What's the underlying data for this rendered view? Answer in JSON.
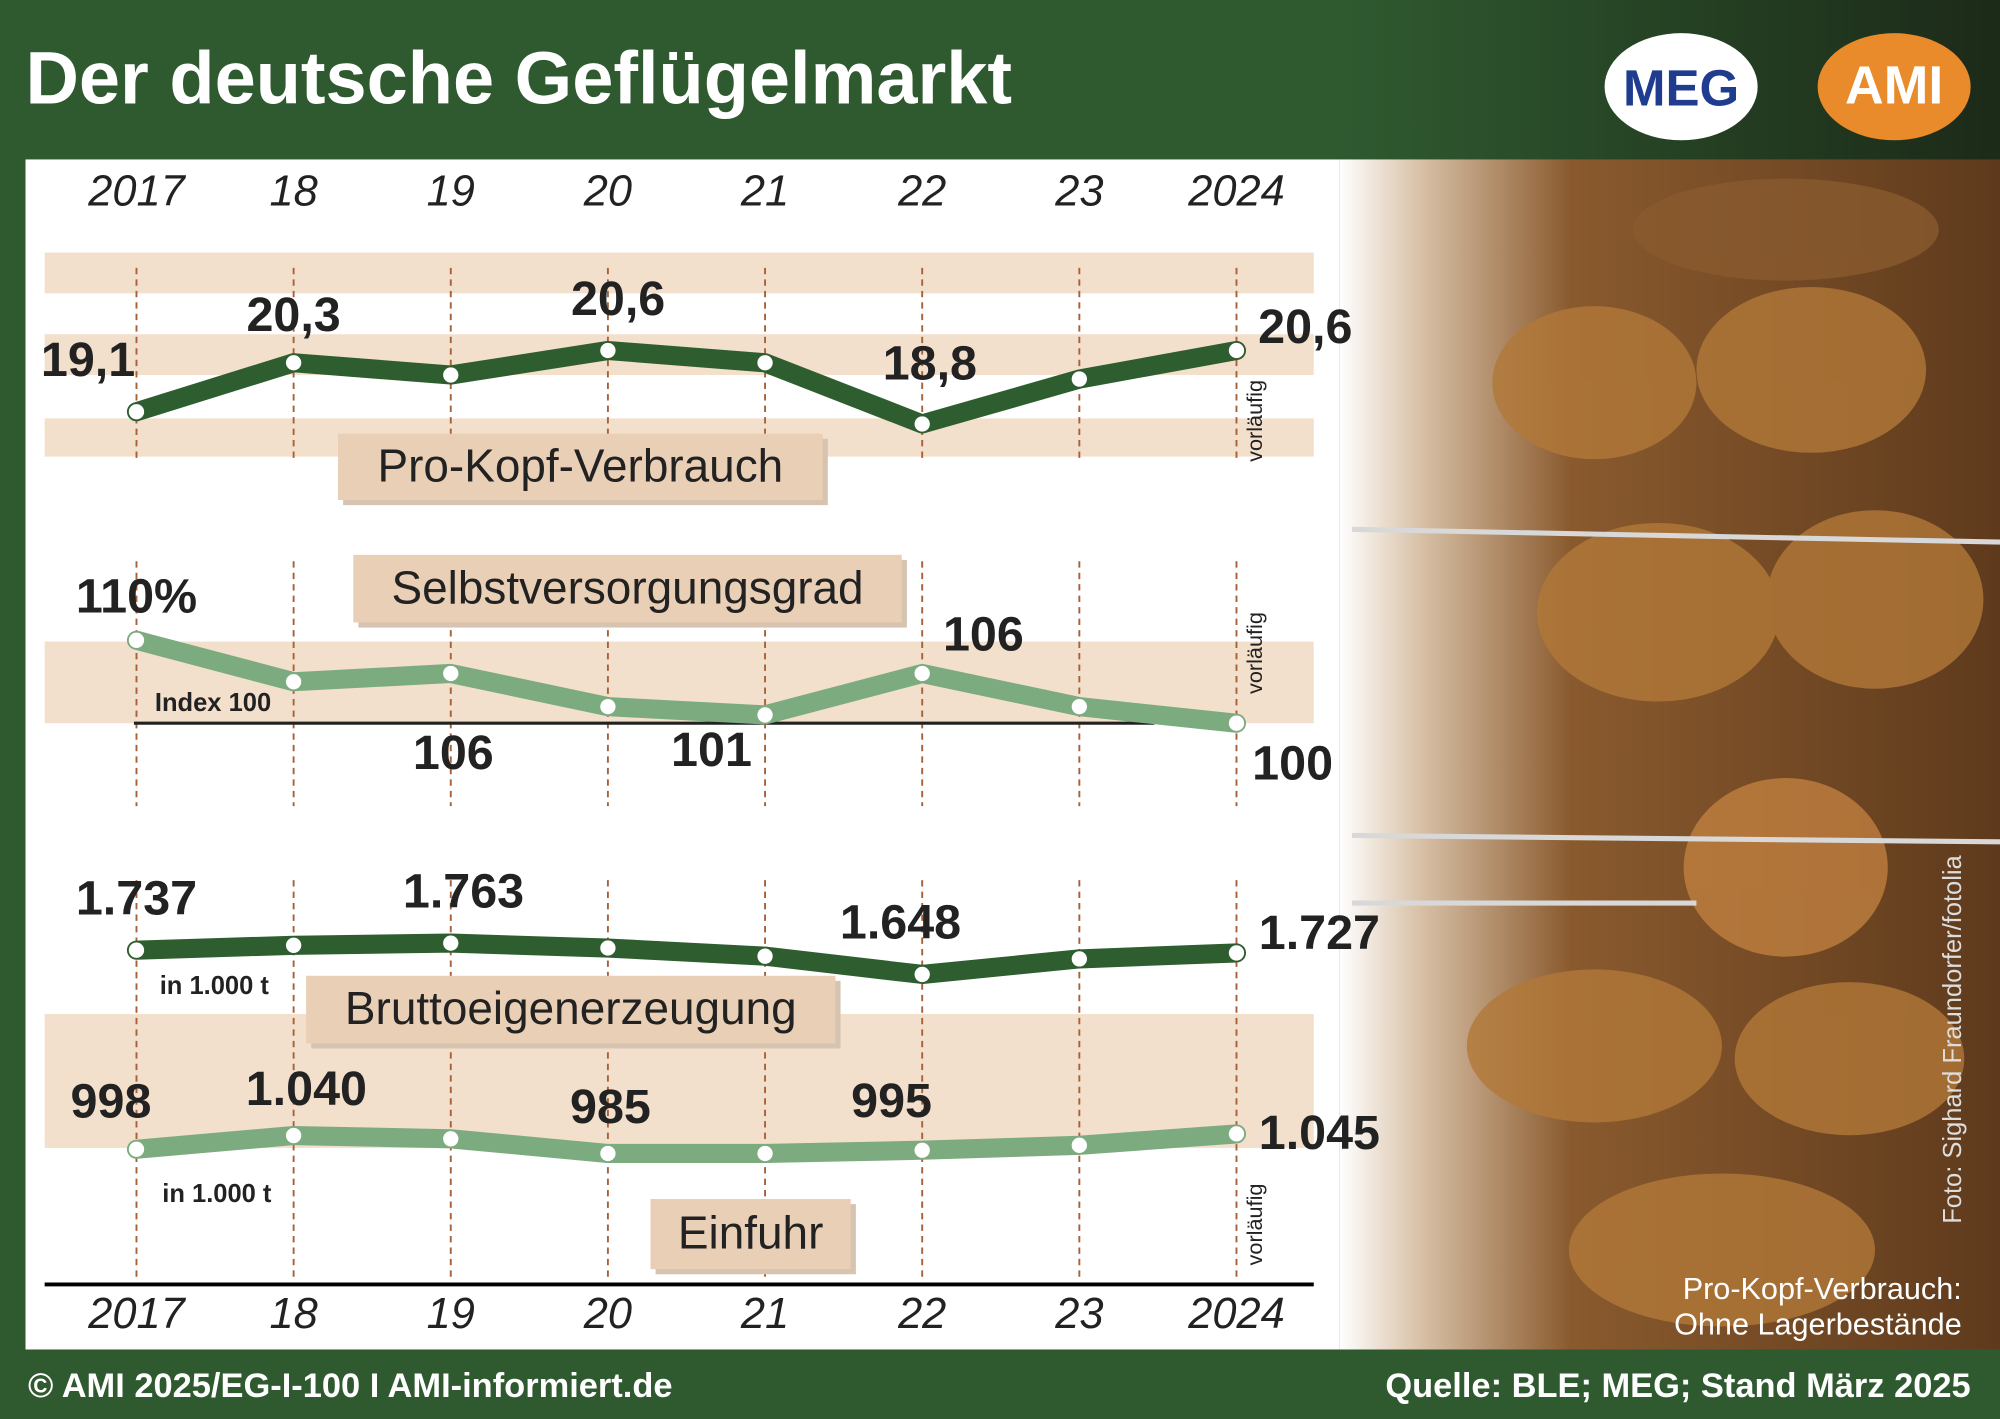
{
  "title": "Der deutsche Geflügelmarkt",
  "logos": [
    "MEG",
    "AMI"
  ],
  "footer_left": "© AMI 2025/EG-I-100 I AMI-informiert.de",
  "footer_right": "Quelle: BLE; MEG; Stand März 2025",
  "photo_credit": "Foto:  Sighard Fraundorfer/fotolia",
  "note": [
    "Pro-Kopf-Verbrauch:",
    "Ohne Lagerbestände"
  ],
  "chart_data": [
    {
      "type": "line",
      "title": "Pro-Kopf-Verbrauch",
      "color": "#2e5e2f",
      "categories": [
        "2017",
        "18",
        "19",
        "20",
        "21",
        "22",
        "23",
        "2024"
      ],
      "values": [
        19.1,
        20.3,
        20.0,
        20.6,
        20.3,
        18.8,
        19.9,
        20.6
      ],
      "value_labels": [
        "19,1",
        "20,3",
        null,
        "20,6",
        null,
        "18,8",
        null,
        "20,6"
      ],
      "ylim": [
        19,
        21
      ],
      "annotation": "vorläufig"
    },
    {
      "type": "line",
      "title": "Selbstversorgungsgrad",
      "color": "#7dab80",
      "categories": [
        "2017",
        "18",
        "19",
        "20",
        "21",
        "22",
        "23",
        "2024"
      ],
      "values": [
        110,
        105,
        106,
        102,
        101,
        106,
        102,
        100
      ],
      "value_labels": [
        "110%",
        null,
        "106",
        null,
        "101",
        "106",
        null,
        "100"
      ],
      "ylim": [
        100,
        110
      ],
      "reference": {
        "value": 100,
        "label": "Index 100"
      },
      "annotation": "vorläufig"
    },
    {
      "type": "line",
      "title": "Bruttoeigenerzeugung",
      "color": "#2e5e2f",
      "categories": [
        "2017",
        "18",
        "19",
        "20",
        "21",
        "22",
        "23",
        "2024"
      ],
      "values": [
        1737,
        1755,
        1763,
        1745,
        1715,
        1648,
        1705,
        1727
      ],
      "value_labels": [
        "1.737",
        null,
        "1.763",
        null,
        null,
        "1.648",
        null,
        "1.727"
      ],
      "ylim": [
        1600,
        1800
      ],
      "unit": "in 1.000 t"
    },
    {
      "type": "line",
      "title": "Einfuhr",
      "color": "#7dab80",
      "categories": [
        "2017",
        "18",
        "19",
        "20",
        "21",
        "22",
        "23",
        "2024"
      ],
      "values": [
        998,
        1040,
        1030,
        985,
        985,
        995,
        1010,
        1045
      ],
      "value_labels": [
        "998",
        "1.040",
        null,
        "985",
        null,
        "995",
        null,
        "1.045"
      ],
      "ylim": [
        950,
        1050
      ],
      "unit": "in 1.000 t",
      "annotation": "vorläufig"
    }
  ]
}
